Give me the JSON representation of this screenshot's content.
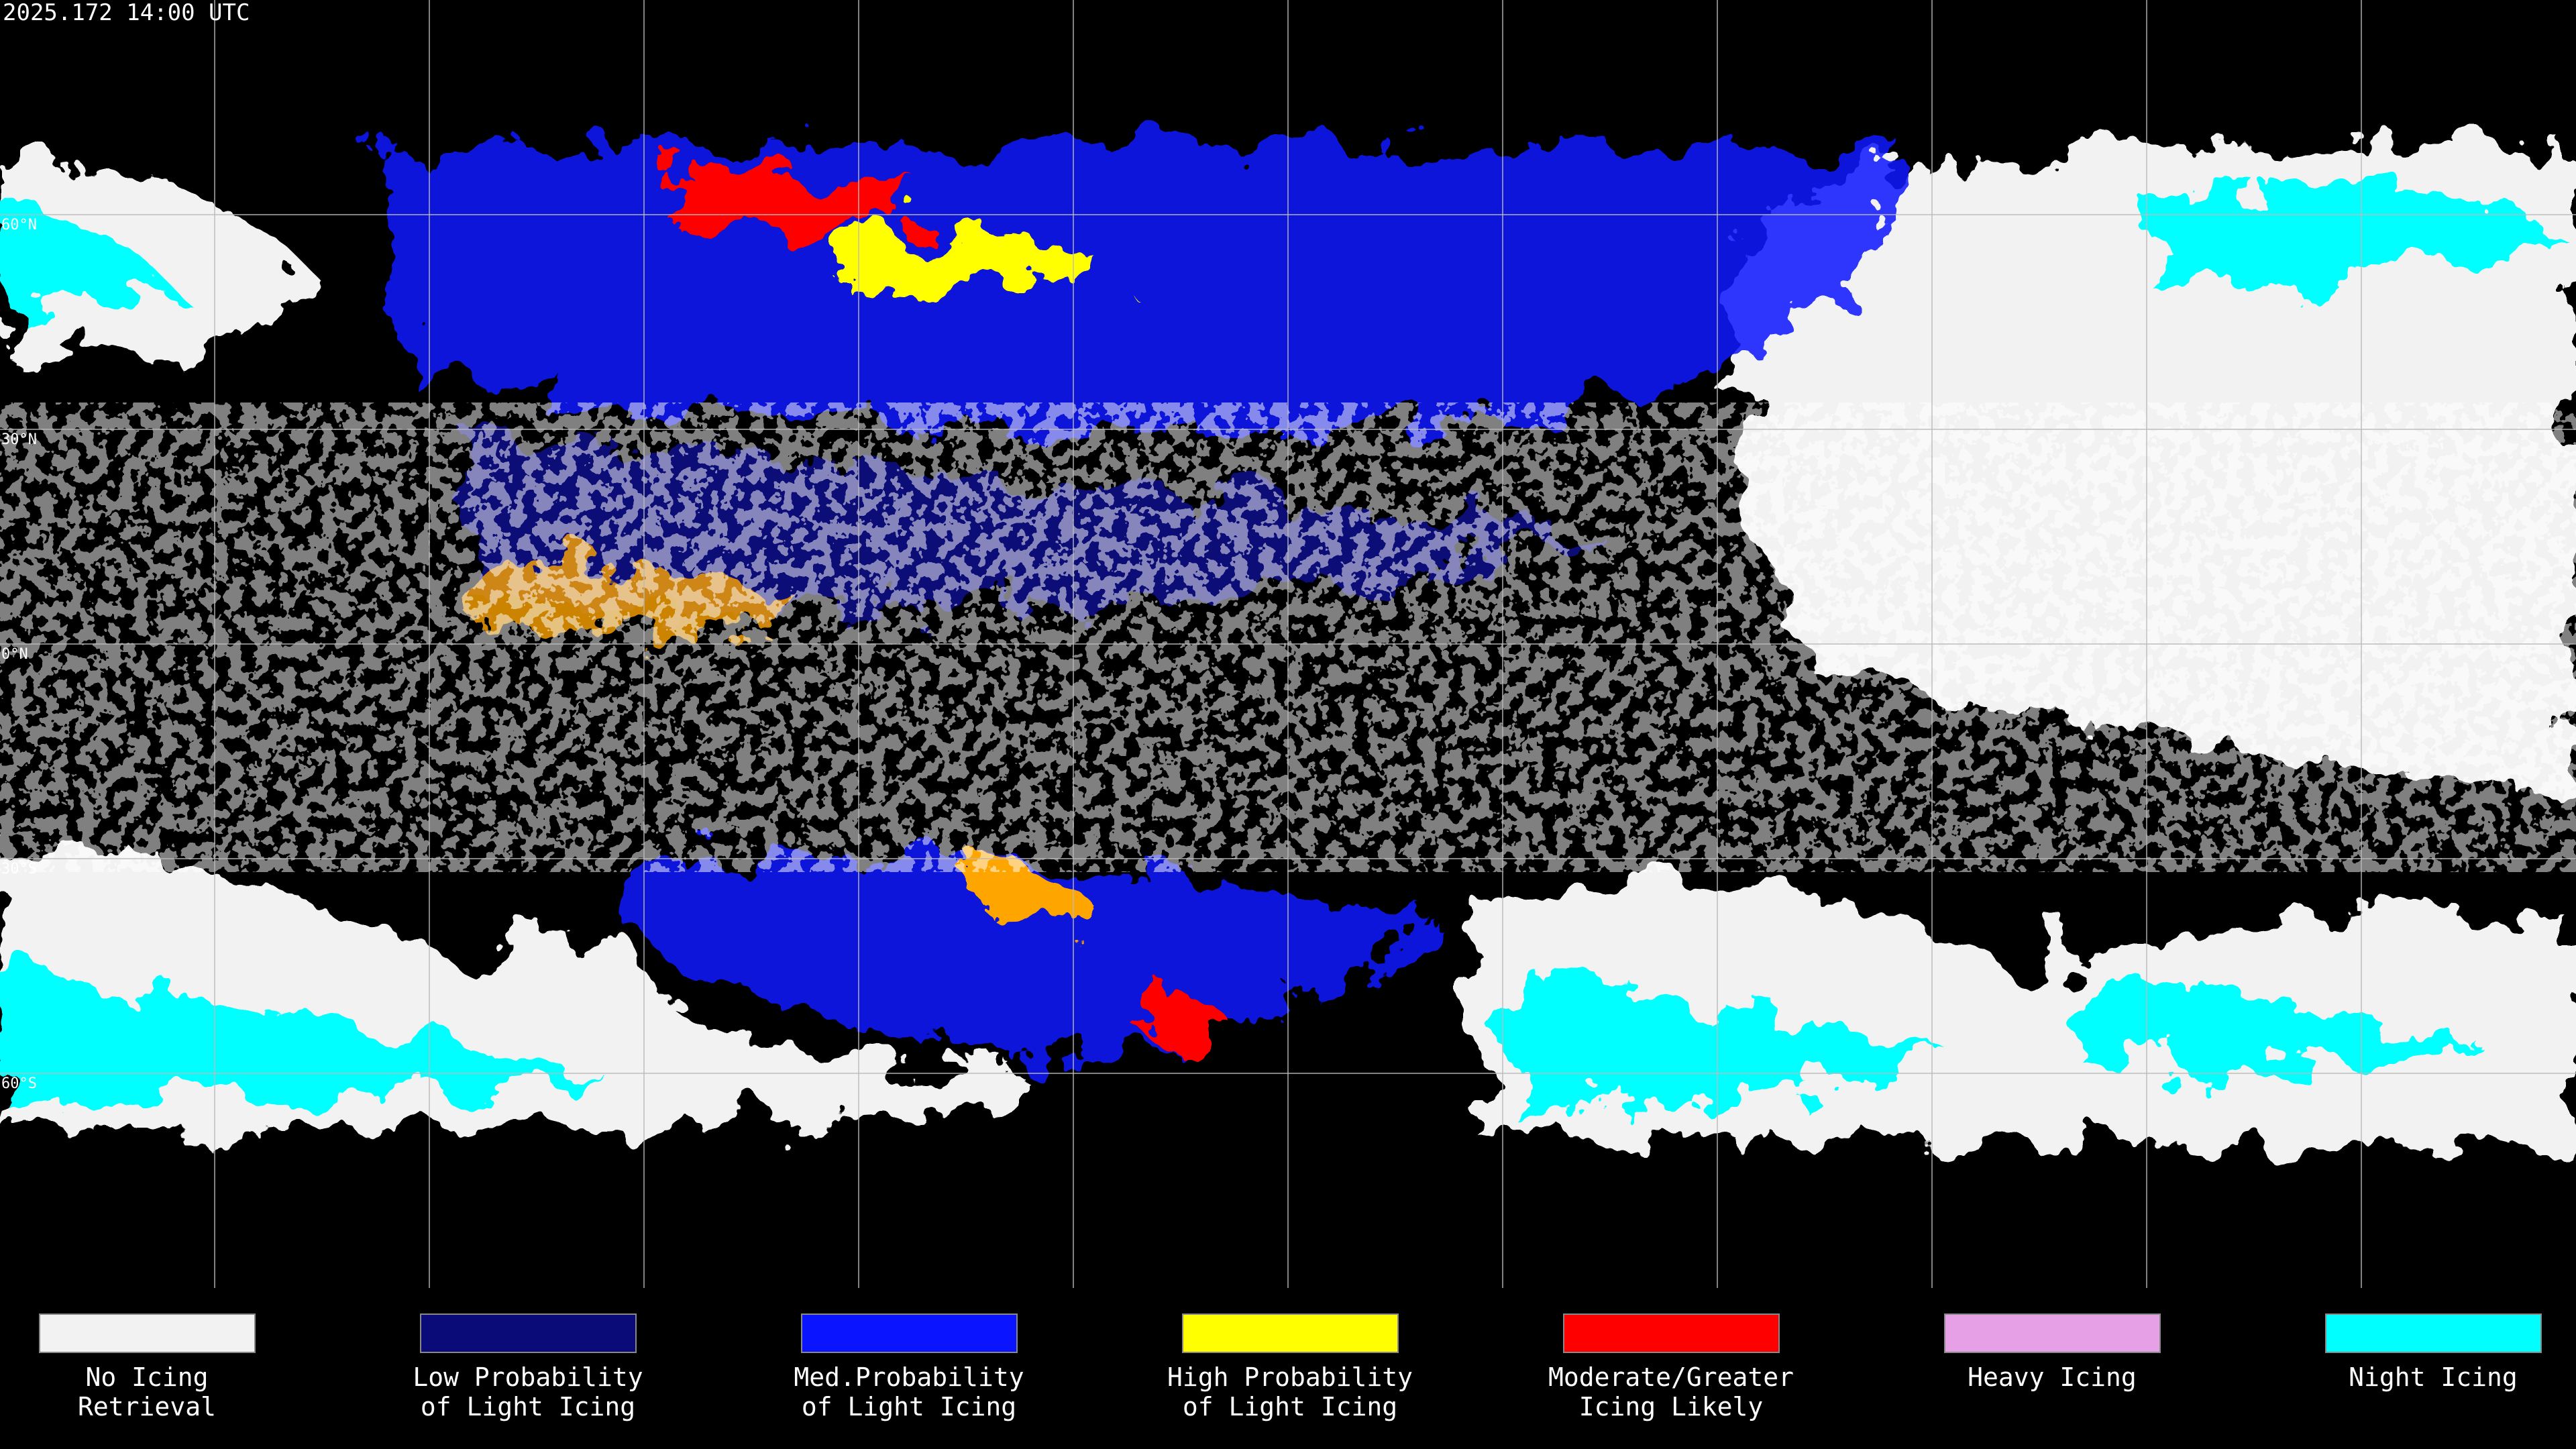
{
  "header": {
    "timestamp": "2025.172 14:00 UTC"
  },
  "map": {
    "latitudes": [
      {
        "value": 60,
        "label": "60°N"
      },
      {
        "value": 30,
        "label": "30°N"
      },
      {
        "value": 0,
        "label": "0°N"
      },
      {
        "value": -30,
        "label": "30°S"
      },
      {
        "value": -60,
        "label": "60°S"
      }
    ],
    "longitude_lines": [
      -150,
      -120,
      -90,
      -60,
      -30,
      0,
      30,
      60,
      90,
      120,
      150
    ]
  },
  "legend": [
    {
      "lines": [
        "No Icing",
        "Retrieval"
      ],
      "color": "#f2f2f2"
    },
    {
      "lines": [
        "Low Probability",
        "of Light Icing"
      ],
      "color": "#0a0a78"
    },
    {
      "lines": [
        "Med.Probability",
        "of Light Icing"
      ],
      "color": "#0a14ff"
    },
    {
      "lines": [
        "High Probability",
        "of Light Icing"
      ],
      "color": "#ffff00"
    },
    {
      "lines": [
        "Moderate/Greater",
        "Icing Likely"
      ],
      "color": "#ff0000"
    },
    {
      "lines": [
        "Heavy Icing"
      ],
      "color": "#e6a0e6"
    },
    {
      "lines": [
        "Night Icing"
      ],
      "color": "#00ffff"
    }
  ]
}
